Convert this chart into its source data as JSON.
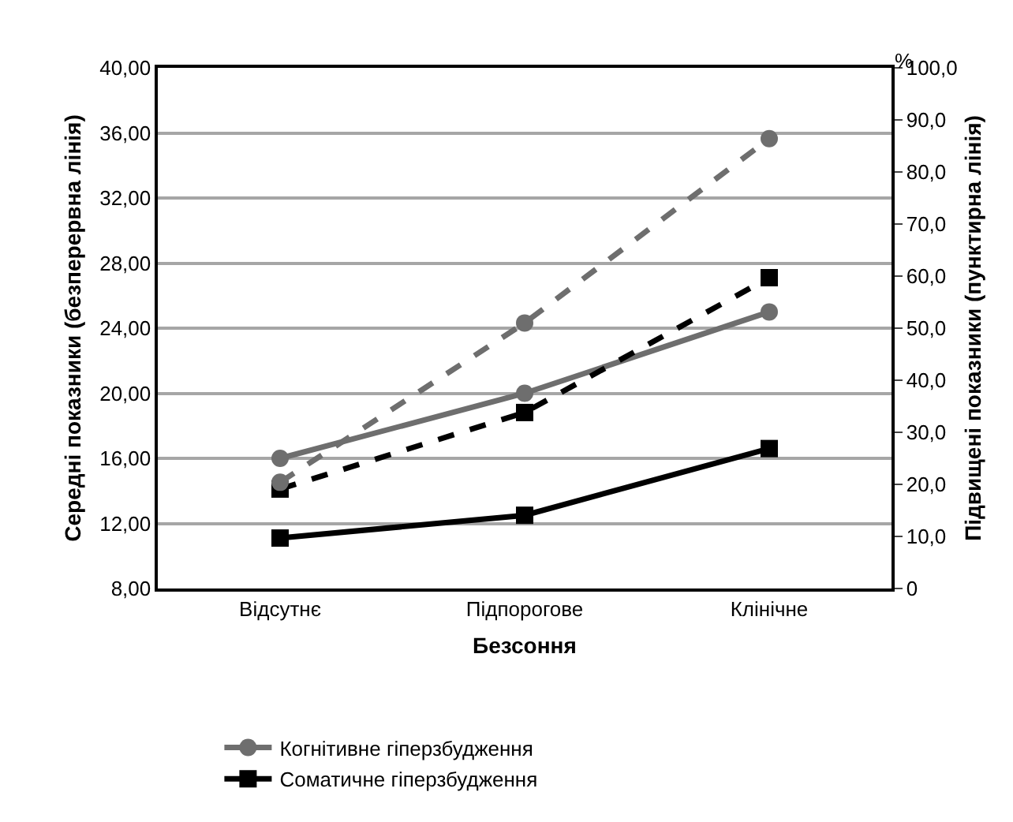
{
  "chart_data": {
    "type": "line",
    "xlabel": "Безсоння",
    "ylabel": "Середні показники (безперервна лінія)",
    "y2label": "Підвищені показники (пунктирна лінія)",
    "annotations": [
      "%"
    ],
    "categories": [
      "Відсутнє",
      "Підпорогове",
      "Клінічне"
    ],
    "series": [
      {
        "name": "Когнітивне гіперзбудження",
        "color": "#6e6e6e",
        "values": [
          16.0,
          20.0,
          25.0
        ],
        "marker": "circle",
        "line_style": "solid"
      },
      {
        "name": "Соматичне гіперзбудження",
        "color": "#000000",
        "values": [
          11.1,
          12.5,
          16.6
        ],
        "marker": "square",
        "line_style": "solid"
      },
      {
        "color": "#000000",
        "values": [
          19.1,
          33.8,
          59.7
        ],
        "marker": "square",
        "line_style": "dashed",
        "axis": "y2"
      },
      {
        "color": "#6e6e6e",
        "values": [
          20.4,
          51.0,
          86.4
        ],
        "marker": "circle",
        "line_style": "dashed",
        "axis": "y2"
      }
    ],
    "ylim": [
      8,
      40
    ],
    "yticks": [
      {
        "value": 8,
        "label": "8,00"
      },
      {
        "value": 12,
        "label": "12,00"
      },
      {
        "value": 16,
        "label": "16,00"
      },
      {
        "value": 20,
        "label": "20,00"
      },
      {
        "value": 24,
        "label": "24,00"
      },
      {
        "value": 28,
        "label": "28,00"
      },
      {
        "value": 32,
        "label": "32,00"
      },
      {
        "value": 36,
        "label": "36,00"
      },
      {
        "value": 40,
        "label": "40,00"
      }
    ],
    "y2lim": [
      0,
      100
    ],
    "y2ticks": [
      0,
      {
        "value": 10,
        "label": "10,0"
      },
      {
        "value": 20,
        "label": "20,0"
      },
      {
        "value": 30,
        "label": "30,0"
      },
      {
        "value": 40,
        "label": "40,0"
      },
      {
        "value": 50,
        "label": "50,0"
      },
      {
        "value": 60,
        "label": "60,0"
      },
      {
        "value": 70,
        "label": "70,0"
      },
      {
        "value": 80,
        "label": "80,0"
      },
      {
        "value": 90,
        "label": "90,0"
      },
      {
        "value": 100,
        "label": "100,0"
      }
    ],
    "grid": "y",
    "legend": "bottom"
  }
}
